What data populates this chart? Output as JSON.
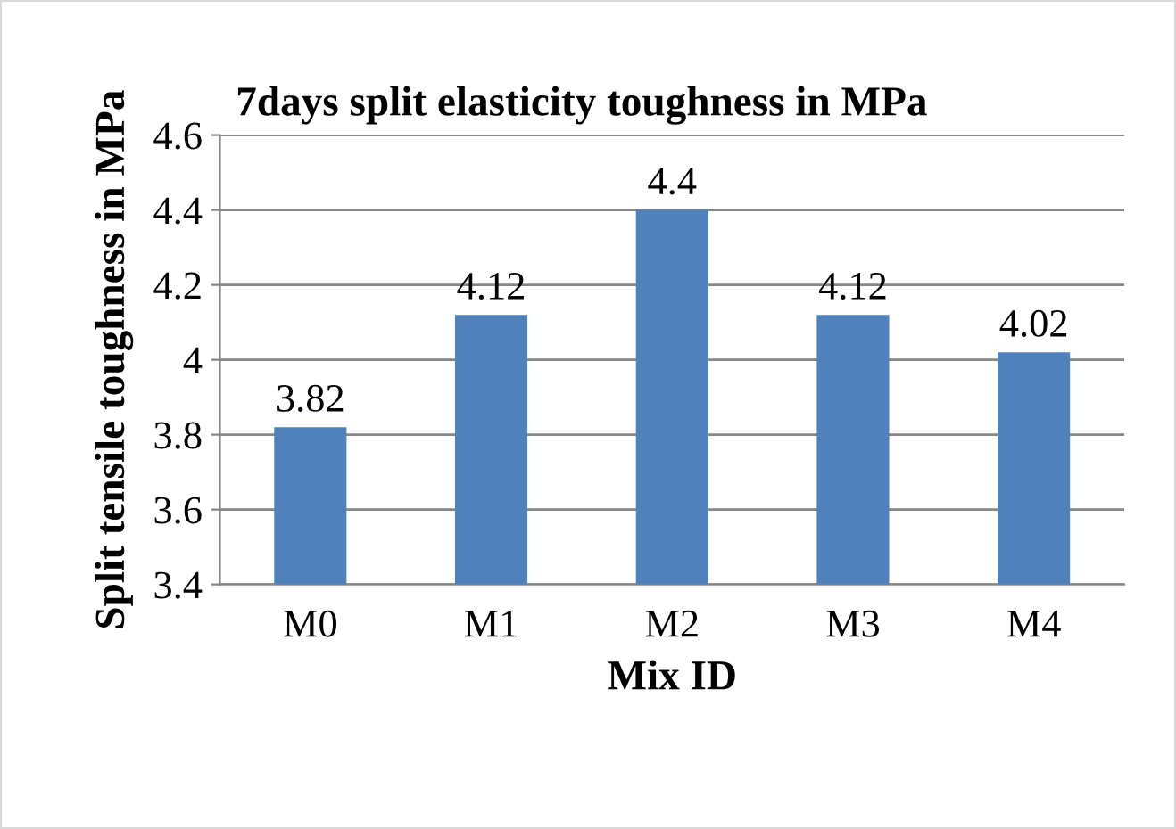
{
  "chart_data": {
    "type": "bar",
    "title": "7days split elasticity toughness in MPa",
    "xlabel": "Mix ID",
    "ylabel": "Split tensile toughness in MPa",
    "categories": [
      "M0",
      "M1",
      "M2",
      "M3",
      "M4"
    ],
    "values": [
      3.82,
      4.12,
      4.4,
      4.12,
      4.02
    ],
    "color": "#4f81bd",
    "ylim": [
      3.4,
      4.6
    ],
    "yticks": [
      3.4,
      3.6,
      3.8,
      4,
      4.2,
      4.4,
      4.6
    ],
    "grid": "y",
    "data_labels": true,
    "legend": false
  }
}
